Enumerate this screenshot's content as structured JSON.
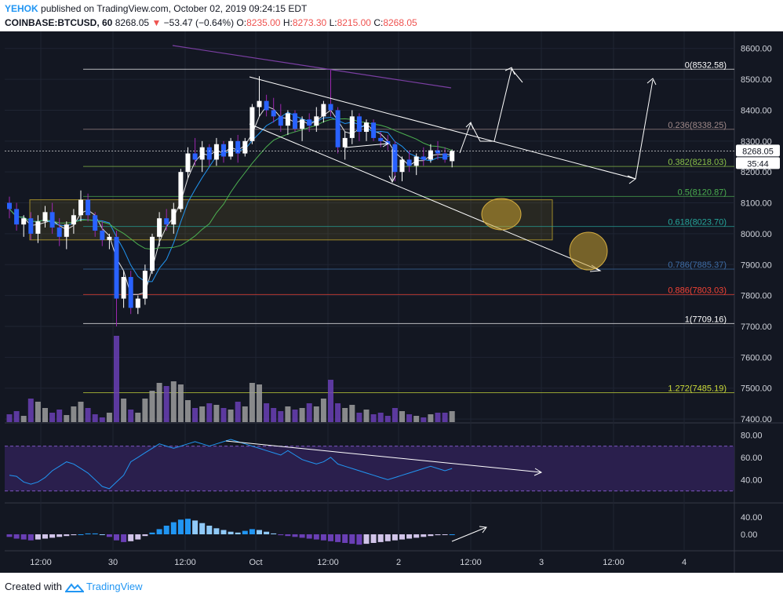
{
  "header": {
    "user": "YEHOK",
    "published": "published on TradingView.com, October 02, 2019 09:24:15 EDT",
    "symbol": "COINBASE:BTCUSD, 60",
    "last": "8268.05",
    "change_arrow": "▼",
    "change": "−53.47 (−0.64%)",
    "o_label": "O:",
    "o_val": "8235.00",
    "h_label": "H:",
    "h_val": "8273.30",
    "l_label": "L:",
    "l_val": "8215.00",
    "c_label": "C:",
    "c_val": "8268.05"
  },
  "footer": {
    "created": "Created with",
    "brand": "TradingView",
    "logo_icon": "tradingview-logo-icon"
  },
  "colors": {
    "bg": "#131722",
    "grid": "#1f2433",
    "bull": "#ffffff",
    "bear": "#2962ff",
    "volume_grey": "#9e9e9e",
    "volume_purple": "#6a3fb5",
    "rsi_band": "#2a1f4d",
    "rsi_line": "#2196f3",
    "ma_purple": "#7b3fa3",
    "ma_green": "#4caf50",
    "ma_blue": "#2196f3",
    "zone": "#9e8a2a",
    "circle": "#c9a030",
    "price_tag": "#ffffff"
  },
  "chart_data": {
    "type": "candlestick",
    "price_axis": [
      "8600.00",
      "8500.00",
      "8400.00",
      "8300.00",
      "8200.00",
      "8100.00",
      "8000.00",
      "7900.00",
      "7800.00",
      "7700.00",
      "7600.00",
      "7500.00",
      "7400.00"
    ],
    "ylim": [
      7390,
      8640
    ],
    "time_axis": [
      "12:00",
      "30",
      "12:00",
      "Oct",
      "12:00",
      "2",
      "12:00",
      "3",
      "12:00",
      "4"
    ],
    "fib_levels": [
      {
        "label": "0(8532.58)",
        "price": 8532.58,
        "color": "#ffffff"
      },
      {
        "label": "0.236(8338.25)",
        "price": 8338.25,
        "color": "#a08a8a"
      },
      {
        "label": "0.382(8218.03)",
        "price": 8218.03,
        "color": "#8bc34a"
      },
      {
        "label": "0.5(8120.87)",
        "price": 8120.87,
        "color": "#4caf50"
      },
      {
        "label": "0.618(8023.70)",
        "price": 8023.7,
        "color": "#26a69a"
      },
      {
        "label": "0.786(7885.37)",
        "price": 7885.37,
        "color": "#3f6ea8"
      },
      {
        "label": "0.886(7803.03)",
        "price": 7803.03,
        "color": "#f44336"
      },
      {
        "label": "1(7709.16)",
        "price": 7709.16,
        "color": "#ffffff"
      },
      {
        "label": "1.272(7485.19)",
        "price": 7485.19,
        "color": "#cddc39"
      }
    ],
    "last_price_tag": "8268.05",
    "countdown_tag": "35:44",
    "candles": [
      [
        8100,
        8120,
        8050,
        8080
      ],
      [
        8080,
        8100,
        8010,
        8030
      ],
      [
        8030,
        8060,
        7990,
        8050
      ],
      [
        8050,
        8070,
        7980,
        8000
      ],
      [
        8000,
        8060,
        7970,
        8040
      ],
      [
        8040,
        8090,
        8020,
        8070
      ],
      [
        8070,
        8100,
        8000,
        8020
      ],
      [
        8020,
        8050,
        7960,
        7990
      ],
      [
        7990,
        8040,
        7950,
        8030
      ],
      [
        8030,
        8080,
        8000,
        8060
      ],
      [
        8060,
        8140,
        8040,
        8110
      ],
      [
        8110,
        8130,
        8040,
        8060
      ],
      [
        8060,
        8070,
        7990,
        8010
      ],
      [
        8010,
        8040,
        7960,
        7980
      ],
      [
        7980,
        8000,
        7950,
        7990
      ],
      [
        7990,
        8010,
        7700,
        7790
      ],
      [
        7790,
        7880,
        7760,
        7860
      ],
      [
        7860,
        7880,
        7740,
        7760
      ],
      [
        7760,
        7800,
        7740,
        7790
      ],
      [
        7790,
        7900,
        7770,
        7880
      ],
      [
        7880,
        8000,
        7870,
        7990
      ],
      [
        7990,
        8070,
        7960,
        8050
      ],
      [
        8050,
        8080,
        8010,
        8030
      ],
      [
        8030,
        8100,
        8000,
        8080
      ],
      [
        8080,
        8210,
        8070,
        8200
      ],
      [
        8200,
        8280,
        8180,
        8260
      ],
      [
        8260,
        8310,
        8220,
        8240
      ],
      [
        8240,
        8300,
        8200,
        8280
      ],
      [
        8280,
        8290,
        8220,
        8240
      ],
      [
        8240,
        8310,
        8220,
        8290
      ],
      [
        8290,
        8300,
        8230,
        8250
      ],
      [
        8250,
        8310,
        8240,
        8300
      ],
      [
        8300,
        8320,
        8230,
        8260
      ],
      [
        8260,
        8310,
        8250,
        8300
      ],
      [
        8300,
        8420,
        8290,
        8410
      ],
      [
        8410,
        8510,
        8380,
        8430
      ],
      [
        8430,
        8450,
        8380,
        8400
      ],
      [
        8400,
        8440,
        8360,
        8380
      ],
      [
        8380,
        8420,
        8330,
        8350
      ],
      [
        8350,
        8400,
        8320,
        8390
      ],
      [
        8390,
        8400,
        8330,
        8340
      ],
      [
        8340,
        8380,
        8300,
        8370
      ],
      [
        8370,
        8390,
        8330,
        8350
      ],
      [
        8350,
        8410,
        8330,
        8380
      ],
      [
        8380,
        8430,
        8360,
        8420
      ],
      [
        8420,
        8530,
        8380,
        8400
      ],
      [
        8400,
        8410,
        8260,
        8280
      ],
      [
        8280,
        8330,
        8240,
        8310
      ],
      [
        8310,
        8400,
        8290,
        8380
      ],
      [
        8380,
        8390,
        8300,
        8330
      ],
      [
        8330,
        8370,
        8300,
        8360
      ],
      [
        8360,
        8370,
        8300,
        8310
      ],
      [
        8310,
        8330,
        8280,
        8300
      ],
      [
        8300,
        8320,
        8270,
        8290
      ],
      [
        8290,
        8300,
        8170,
        8200
      ],
      [
        8200,
        8250,
        8170,
        8240
      ],
      [
        8240,
        8270,
        8200,
        8220
      ],
      [
        8220,
        8260,
        8190,
        8250
      ],
      [
        8250,
        8280,
        8220,
        8240
      ],
      [
        8240,
        8290,
        8230,
        8270
      ],
      [
        8270,
        8300,
        8240,
        8260
      ],
      [
        8260,
        8280,
        8230,
        8240
      ],
      [
        8235,
        8273,
        8215,
        8268
      ]
    ],
    "volume": [
      10,
      14,
      8,
      30,
      26,
      18,
      12,
      16,
      9,
      20,
      26,
      18,
      10,
      6,
      12,
      110,
      30,
      16,
      12,
      30,
      40,
      50,
      46,
      52,
      48,
      28,
      18,
      20,
      24,
      22,
      18,
      16,
      26,
      20,
      50,
      48,
      24,
      18,
      14,
      20,
      16,
      18,
      24,
      20,
      30,
      54,
      24,
      18,
      22,
      12,
      16,
      10,
      12,
      8,
      18,
      14,
      10,
      8,
      6,
      10,
      12,
      12,
      14
    ],
    "rsi_axis": [
      "80.00",
      "60.00",
      "40.00"
    ],
    "rsi": [
      44,
      43,
      38,
      36,
      38,
      42,
      48,
      52,
      56,
      54,
      50,
      46,
      40,
      34,
      32,
      38,
      44,
      56,
      60,
      64,
      68,
      72,
      70,
      68,
      70,
      72,
      74,
      72,
      70,
      72,
      74,
      76,
      74,
      72,
      70,
      68,
      66,
      64,
      62,
      66,
      62,
      58,
      56,
      54,
      56,
      60,
      54,
      52,
      50,
      48,
      46,
      44,
      42,
      40,
      42,
      44,
      46,
      48,
      50,
      52,
      50,
      48,
      50
    ],
    "macd_axis": [
      "40.00",
      "0.00"
    ],
    "macd": [
      -6,
      -10,
      -12,
      -14,
      -12,
      -10,
      -8,
      -6,
      -4,
      -2,
      0,
      2,
      2,
      0,
      -6,
      -14,
      -18,
      -16,
      -12,
      -4,
      4,
      12,
      20,
      28,
      34,
      36,
      32,
      26,
      20,
      14,
      10,
      6,
      4,
      8,
      12,
      10,
      6,
      2,
      -2,
      -4,
      -6,
      -8,
      -10,
      -12,
      -14,
      -16,
      -18,
      -20,
      -22,
      -24,
      -22,
      -20,
      -18,
      -16,
      -14,
      -12,
      -10,
      -8,
      -6,
      -4,
      -2,
      -1,
      0
    ]
  }
}
